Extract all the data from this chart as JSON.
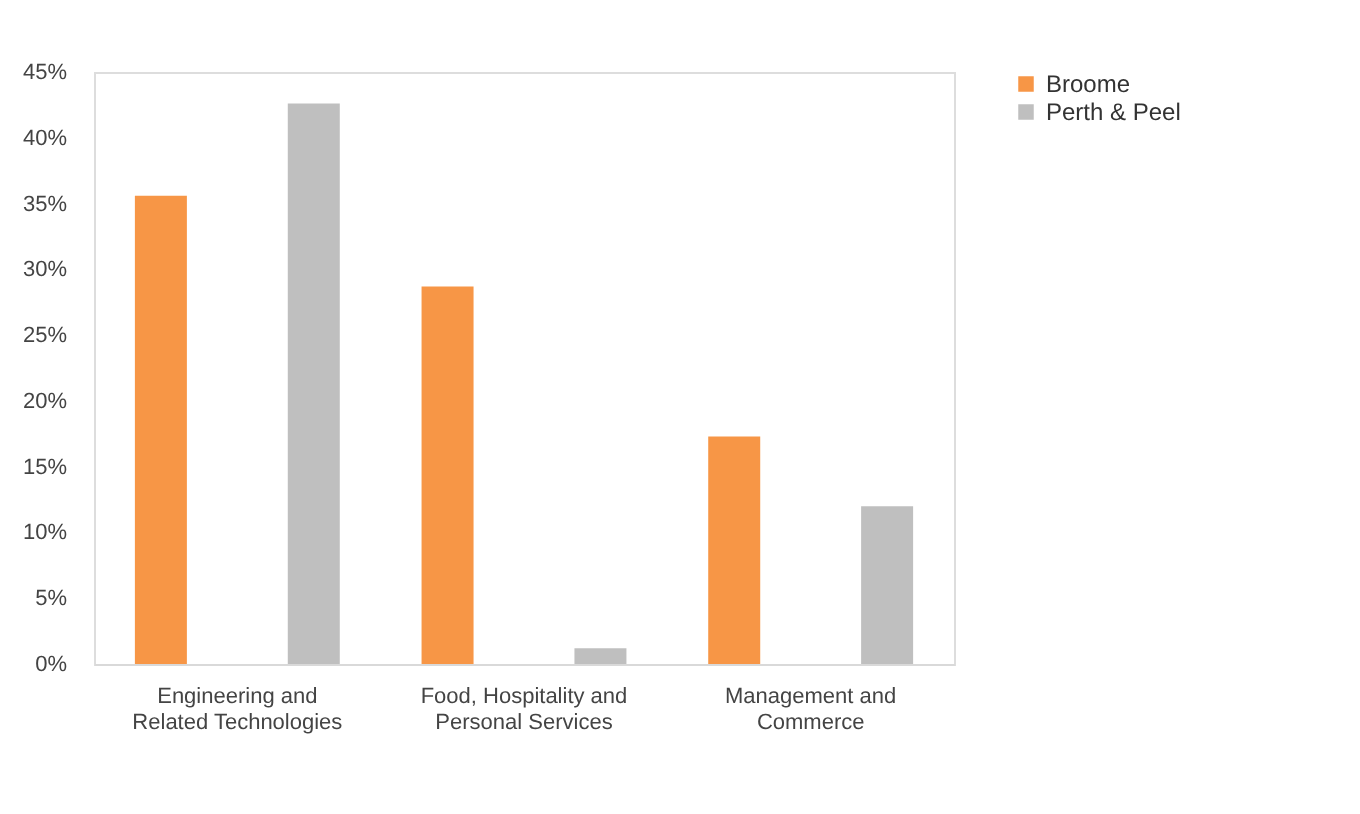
{
  "chart_data": {
    "type": "bar",
    "categories": [
      "Engineering and Related Technologies",
      "Food, Hospitality and Personal Services",
      "Management and Commerce"
    ],
    "series": [
      {
        "name": "Broome",
        "color": "#f79646",
        "values": [
          35.6,
          28.7,
          17.3
        ]
      },
      {
        "name": "Perth & Peel",
        "color": "#bfbfbf",
        "values": [
          42.6,
          1.2,
          12.0
        ]
      }
    ],
    "ylim": [
      0,
      45
    ],
    "yticks": [
      {
        "value": 0,
        "label": "0%"
      },
      {
        "value": 5,
        "label": "5%"
      },
      {
        "value": 10,
        "label": "10%"
      },
      {
        "value": 15,
        "label": "15%"
      },
      {
        "value": 20,
        "label": "20%"
      },
      {
        "value": 25,
        "label": "25%"
      },
      {
        "value": 30,
        "label": "30%"
      },
      {
        "value": 35,
        "label": "35%"
      },
      {
        "value": 40,
        "label": "40%"
      },
      {
        "value": 45,
        "label": "45%"
      }
    ],
    "grid": false,
    "legend": "right"
  }
}
